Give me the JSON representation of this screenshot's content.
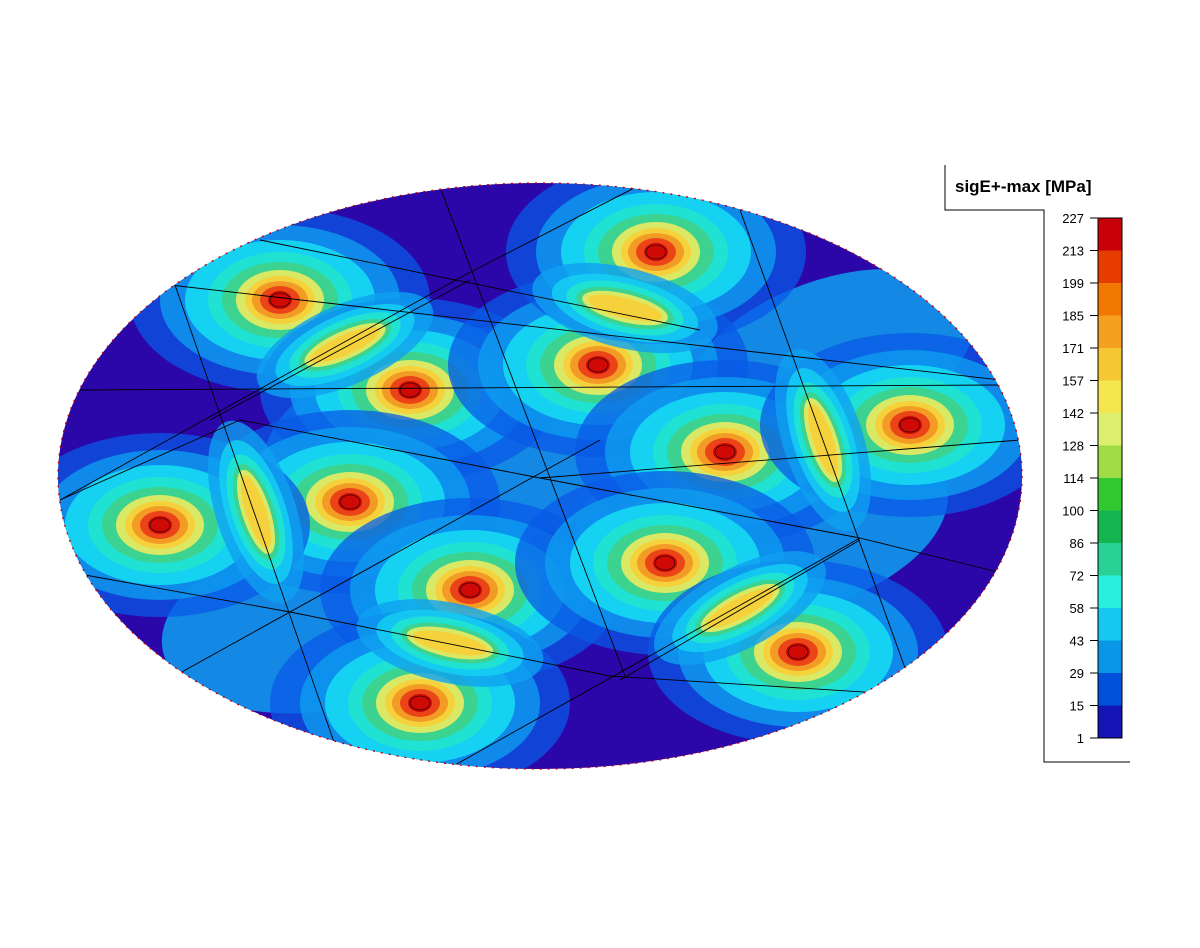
{
  "legend": {
    "title": "sigE+-max [MPa]",
    "ticks": [
      "227",
      "213",
      "199",
      "185",
      "171",
      "157",
      "142",
      "128",
      "114",
      "100",
      "86",
      "72",
      "58",
      "43",
      "29",
      "15",
      "1"
    ],
    "colors": [
      "#c8000a",
      "#e63c00",
      "#f07800",
      "#f5a020",
      "#f5c832",
      "#f5e650",
      "#dcf06e",
      "#a0dc46",
      "#32c832",
      "#14b450",
      "#28d296",
      "#28f0dc",
      "#14c8f0",
      "#0a96e6",
      "#0050dc",
      "#1414b4"
    ]
  },
  "plot": {
    "background_color": "#2b06a8",
    "edge_color": "#c00000",
    "mesh_color": "#000000"
  },
  "hotspot_colors": [
    "#0a5ae6",
    "#0fa0f0",
    "#15d2f2",
    "#20e2d2",
    "#3cd290",
    "#d9e966",
    "#f5d23c",
    "#f29b25",
    "#ea4418",
    "#cf0a06"
  ]
}
